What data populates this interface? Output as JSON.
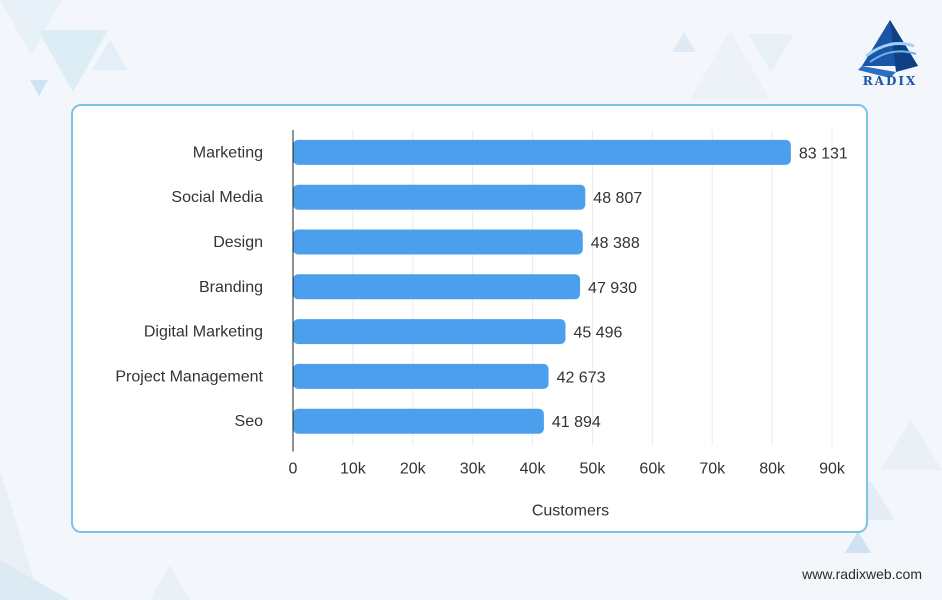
{
  "brand": {
    "name": "RADIX",
    "url": "www.radixweb.com"
  },
  "colors": {
    "bar": "#4c9fec",
    "card_border": "#7ec3e6",
    "grid": "#e6ecf3",
    "axis": "#222222",
    "brand": "#1b56a6"
  },
  "chart_data": {
    "type": "bar",
    "orientation": "horizontal",
    "categories": [
      "Marketing",
      "Social Media",
      "Design",
      "Branding",
      "Digital Marketing",
      "Project Management",
      "Seo"
    ],
    "values": [
      83131,
      48807,
      48388,
      47930,
      45496,
      42673,
      41894
    ],
    "value_labels": [
      "83 131",
      "48 807",
      "48 388",
      "47 930",
      "45 496",
      "42 673",
      "41 894"
    ],
    "xlabel": "Customers",
    "ylabel": "",
    "xlim": [
      0,
      90000
    ],
    "xticks": [
      0,
      10000,
      20000,
      30000,
      40000,
      50000,
      60000,
      70000,
      80000,
      90000
    ],
    "xtick_labels": [
      "0",
      "10k",
      "20k",
      "30k",
      "40k",
      "50k",
      "60k",
      "70k",
      "80k",
      "90k"
    ],
    "grid": true,
    "legend": "none"
  }
}
